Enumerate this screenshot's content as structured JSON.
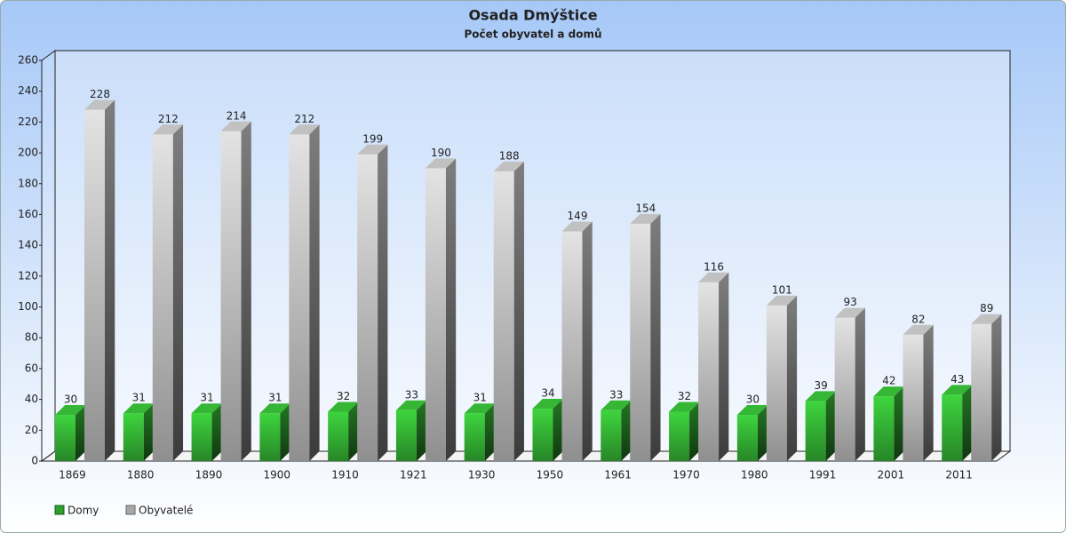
{
  "chart_data": {
    "type": "bar3d",
    "title": "Osada Dmýštice",
    "subtitle": "Počet obyvatel a domů",
    "categories": [
      "1869",
      "1880",
      "1890",
      "1900",
      "1910",
      "1921",
      "1930",
      "1950",
      "1961",
      "1970",
      "1980",
      "1991",
      "2001",
      "2011"
    ],
    "series": [
      {
        "name": "Domy",
        "color": "#2e9e2e",
        "values": [
          30,
          31,
          31,
          31,
          32,
          33,
          31,
          34,
          33,
          32,
          30,
          39,
          42,
          43
        ]
      },
      {
        "name": "Obyvatelé",
        "color": "#a8a8a8",
        "values": [
          228,
          212,
          214,
          212,
          199,
          190,
          188,
          149,
          154,
          116,
          101,
          93,
          82,
          89
        ]
      }
    ],
    "ylim": [
      0,
      260
    ],
    "yticks": [
      0,
      20,
      40,
      60,
      80,
      100,
      120,
      140,
      160,
      180,
      200,
      220,
      240,
      260
    ],
    "grid": false,
    "legend": "bottom-left"
  }
}
